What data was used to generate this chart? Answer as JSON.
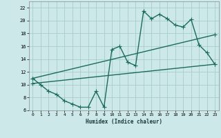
{
  "xlabel": "Humidex (Indice chaleur)",
  "bg_color": "#cce8e8",
  "grid_color": "#a8cccc",
  "line_color": "#1a6b5a",
  "xlim": [
    -0.5,
    23.5
  ],
  "ylim": [
    6,
    23
  ],
  "xticks": [
    0,
    1,
    2,
    3,
    4,
    5,
    6,
    7,
    8,
    9,
    10,
    11,
    12,
    13,
    14,
    15,
    16,
    17,
    18,
    19,
    20,
    21,
    22,
    23
  ],
  "yticks": [
    6,
    8,
    10,
    12,
    14,
    16,
    18,
    20,
    22
  ],
  "line1_x": [
    0,
    1,
    2,
    3,
    4,
    5,
    6,
    7,
    8,
    9,
    10,
    11,
    12,
    13,
    14,
    15,
    16,
    17,
    18,
    19,
    20,
    21,
    22,
    23
  ],
  "line1_y": [
    11,
    10,
    9,
    8.5,
    7.5,
    7,
    6.5,
    6.5,
    9,
    6.5,
    15.5,
    16,
    13.5,
    13,
    21.5,
    20.3,
    21,
    20.3,
    19.3,
    19,
    20.2,
    16.2,
    15,
    13.2
  ],
  "line2_x": [
    0,
    23
  ],
  "line2_y": [
    10.2,
    13.2
  ],
  "line3_x": [
    0,
    23
  ],
  "line3_y": [
    11,
    17.8
  ],
  "marker": "+",
  "markersize": 4,
  "linewidth": 1.0
}
